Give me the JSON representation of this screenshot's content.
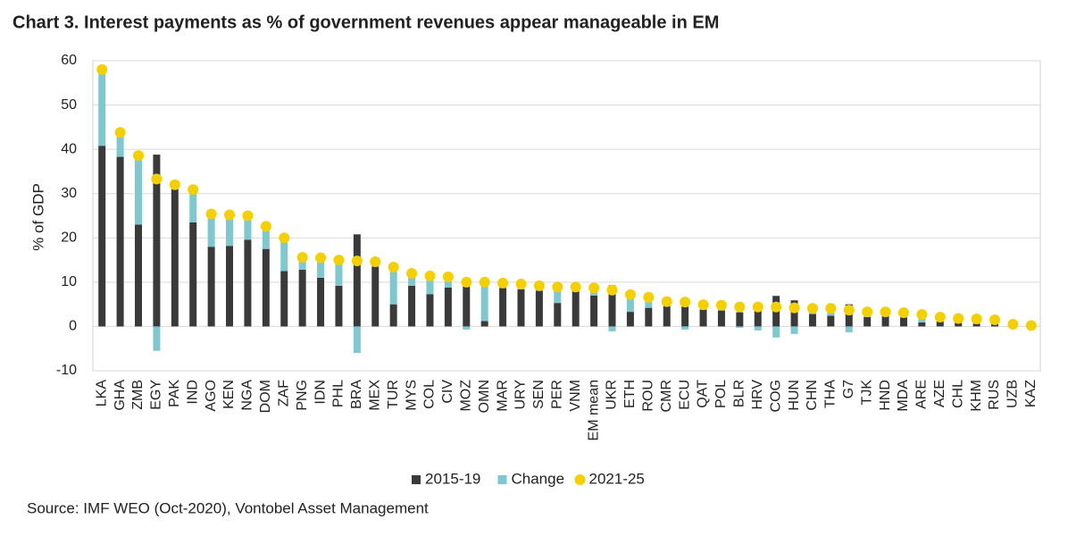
{
  "chart_data": {
    "type": "bar",
    "stacked": true,
    "title": "Chart 3. Interest payments as % of government revenues appear manageable in EM",
    "ylabel": "% of GDP",
    "source": "Source: IMF WEO (Oct-2020), Vontobel Asset Management",
    "categories": [
      "LKA",
      "GHA",
      "ZMB",
      "EGY",
      "PAK",
      "IND",
      "AGO",
      "KEN",
      "NGA",
      "DOM",
      "ZAF",
      "PNG",
      "IDN",
      "PHL",
      "BRA",
      "MEX",
      "TUR",
      "MYS",
      "COL",
      "CIV",
      "MOZ",
      "OMN",
      "MAR",
      "URY",
      "SEN",
      "PER",
      "VNM",
      "EM mean",
      "UKR",
      "ETH",
      "ROU",
      "CMR",
      "ECU",
      "QAT",
      "POL",
      "BLR",
      "HRV",
      "COG",
      "HUN",
      "CHN",
      "THA",
      "G7",
      "TJK",
      "HND",
      "MDA",
      "ARE",
      "AZE",
      "CHL",
      "KHM",
      "RUS",
      "UZB",
      "KAZ"
    ],
    "series": [
      {
        "name": "2015-19",
        "type": "bar",
        "color": "#3a3a3a",
        "values": [
          40.8,
          38.3,
          23,
          38.8,
          31,
          23.5,
          18,
          18.2,
          19.6,
          17.5,
          12.5,
          12.8,
          11,
          9.2,
          20.8,
          13.5,
          5,
          9.2,
          7.3,
          8.8,
          9,
          1.2,
          8.7,
          8.4,
          8.1,
          5.3,
          7.9,
          7,
          9.3,
          3.3,
          4.2,
          4.6,
          4.5,
          3.8,
          3.6,
          3.2,
          5.3,
          6.9,
          5.9,
          2.8,
          2.4,
          5,
          2.1,
          2.3,
          2,
          0.9,
          1.1,
          0.8,
          0.6,
          0.7,
          0.2,
          -0.6
        ]
      },
      {
        "name": "Change",
        "type": "bar",
        "color": "#7ec8d0",
        "values": [
          17.2,
          5.5,
          15.6,
          -5.5,
          1,
          7.4,
          7.4,
          7,
          5.4,
          5.1,
          7.5,
          2.8,
          4.5,
          5.8,
          -6,
          1.1,
          8.4,
          2.8,
          4.1,
          2.4,
          -0.7,
          8.8,
          1.1,
          1.2,
          1.1,
          3.6,
          1,
          1.7,
          -1.1,
          3.9,
          2.4,
          1,
          -0.7,
          1.1,
          1.2,
          -0.3,
          -0.9,
          -2.5,
          -1.7,
          1.3,
          1.7,
          -1.3,
          1.2,
          1,
          1.1,
          1.8,
          1,
          1,
          1.1,
          0.8,
          0.3,
          0.4
        ]
      },
      {
        "name": "2021-25",
        "type": "scatter",
        "color": "#f5d000",
        "values": [
          58,
          43.8,
          38.6,
          33.3,
          32,
          30.9,
          25.4,
          25.2,
          25,
          22.6,
          20,
          15.6,
          15.5,
          15,
          14.8,
          14.6,
          13.4,
          12,
          11.4,
          11.2,
          10,
          10,
          9.8,
          9.6,
          9.2,
          8.9,
          8.9,
          8.7,
          8.2,
          7.2,
          6.6,
          5.6,
          5.5,
          4.9,
          4.8,
          4.4,
          4.4,
          4.4,
          4.2,
          4.1,
          4.1,
          3.7,
          3.3,
          3.3,
          3.1,
          2.7,
          2.1,
          1.8,
          1.7,
          1.5,
          0.5,
          0.2
        ]
      }
    ],
    "ylim": [
      -10,
      60
    ],
    "yticks": [
      -10,
      0,
      10,
      20,
      30,
      40,
      50,
      60
    ],
    "grid": true,
    "legend": "bottom"
  }
}
